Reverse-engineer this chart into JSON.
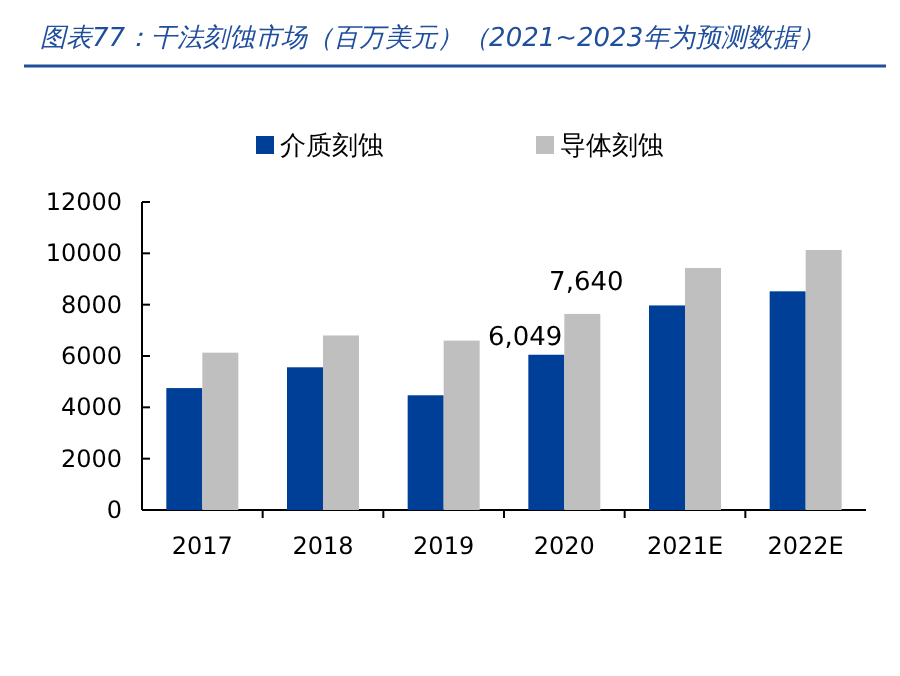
{
  "chart_data": {
    "type": "bar",
    "title": "图表77：干法刻蚀市场（百万美元）（2021~2023年为预测数据）",
    "categories": [
      "2017",
      "2018",
      "2019",
      "2020",
      "2021E",
      "2022E"
    ],
    "series": [
      {
        "name": "介质刻蚀",
        "color": "#003f98",
        "values": [
          4750,
          5560,
          4470,
          6049,
          7970,
          8520
        ],
        "value_labels": [
          null,
          null,
          null,
          "6,049",
          null,
          null
        ]
      },
      {
        "name": "导体刻蚀",
        "color": "#bfbfbf",
        "values": [
          6130,
          6800,
          6600,
          7640,
          9430,
          10130
        ],
        "value_labels": [
          null,
          null,
          null,
          "7,640",
          null,
          null
        ]
      }
    ],
    "ylim": [
      0,
      12000
    ],
    "yticks": [
      0,
      2000,
      4000,
      6000,
      8000,
      10000,
      12000
    ],
    "legend": "top",
    "grid": false
  }
}
